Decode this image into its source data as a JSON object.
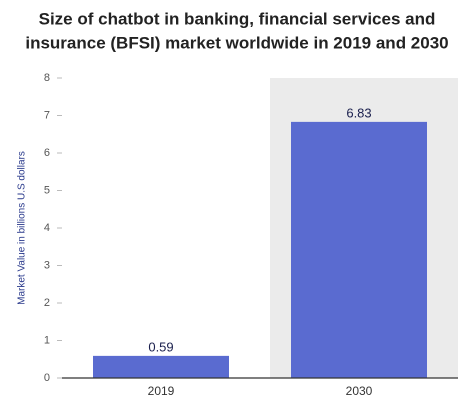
{
  "chart_data": {
    "type": "bar",
    "title": [
      "Size of chatbot in banking, financial services and",
      "insurance (BFSI) market worldwide in 2019 and 2030"
    ],
    "y_label": "Market Value in billions U.S dollars",
    "categories": [
      "2019",
      "2030"
    ],
    "values": [
      0.59,
      6.83
    ],
    "color": "#5a6bd0",
    "ylim": [
      0,
      8
    ],
    "yticks": [
      0,
      1,
      2,
      3,
      4,
      5,
      6,
      7,
      8
    ],
    "grid": false
  }
}
